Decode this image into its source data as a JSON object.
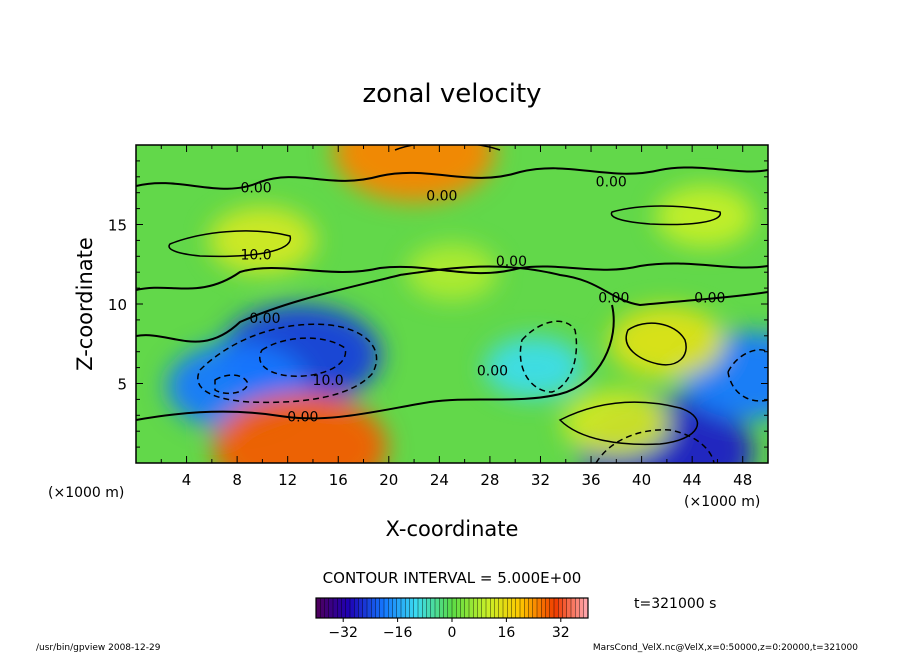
{
  "chart_data": {
    "type": "heatmap",
    "title": "zonal velocity",
    "xlabel": "X-coordinate",
    "ylabel": "Z-coordinate",
    "x_unit_label": "(×1000 m)",
    "x_unit_label_right": "(×1000 m)",
    "xlim": [
      0,
      50
    ],
    "ylim": [
      0,
      20
    ],
    "xticks": [
      4,
      8,
      12,
      16,
      20,
      24,
      28,
      32,
      36,
      40,
      44,
      48
    ],
    "yticks": [
      5,
      10,
      15
    ],
    "contour_interval_text": "CONTOUR INTERVAL = 5.000E+00",
    "time_text": "t=321000 s",
    "colorbar": {
      "range": [
        -40,
        40
      ],
      "ticks": [
        -32,
        -16,
        0,
        16,
        32
      ],
      "tick_labels": [
        "−32",
        "−16",
        "0",
        "16",
        "32"
      ]
    },
    "contour_labels": [
      {
        "text": "0.00",
        "x": 9.5,
        "z": 17.0
      },
      {
        "text": "0.00",
        "x": 24.2,
        "z": 16.5
      },
      {
        "text": "0.00",
        "x": 37.6,
        "z": 17.4
      },
      {
        "text": "10.0",
        "x": 9.5,
        "z": 12.8
      },
      {
        "text": "0.00",
        "x": 29.7,
        "z": 12.4
      },
      {
        "text": "0.00",
        "x": 37.8,
        "z": 10.1
      },
      {
        "text": "0.00",
        "x": 45.4,
        "z": 10.1
      },
      {
        "text": "0.00",
        "x": 10.2,
        "z": 8.8
      },
      {
        "text": "10.0",
        "x": 15.2,
        "z": 4.9
      },
      {
        "text": "0.00",
        "x": 28.2,
        "z": 5.5
      },
      {
        "text": "0.00",
        "x": 13.2,
        "z": 2.6
      }
    ],
    "features": [
      {
        "x": 13.0,
        "z": 6.8,
        "value": -25
      },
      {
        "x": 8.0,
        "z": 4.8,
        "value": -20
      },
      {
        "x": 13.0,
        "z": 1.0,
        "value": 28
      },
      {
        "x": 22.0,
        "z": 19.6,
        "value": 25
      },
      {
        "x": 42.0,
        "z": 0.7,
        "value": -28
      },
      {
        "x": 48.5,
        "z": 5.5,
        "value": -20
      },
      {
        "x": 31.5,
        "z": 6.0,
        "value": -10
      },
      {
        "x": 42.0,
        "z": 7.6,
        "value": 14
      },
      {
        "x": 38.0,
        "z": 2.5,
        "value": 12
      },
      {
        "x": 10.0,
        "z": 14.0,
        "value": 12
      },
      {
        "x": 45.0,
        "z": 15.5,
        "value": 10
      },
      {
        "x": 25.0,
        "z": 12.0,
        "value": 8
      }
    ]
  },
  "footer": {
    "left": "/usr/bin/gpview   2008-12-29",
    "right": "MarsCond_VelX.nc@VelX,x=0:50000,z=0:20000,t=321000"
  }
}
